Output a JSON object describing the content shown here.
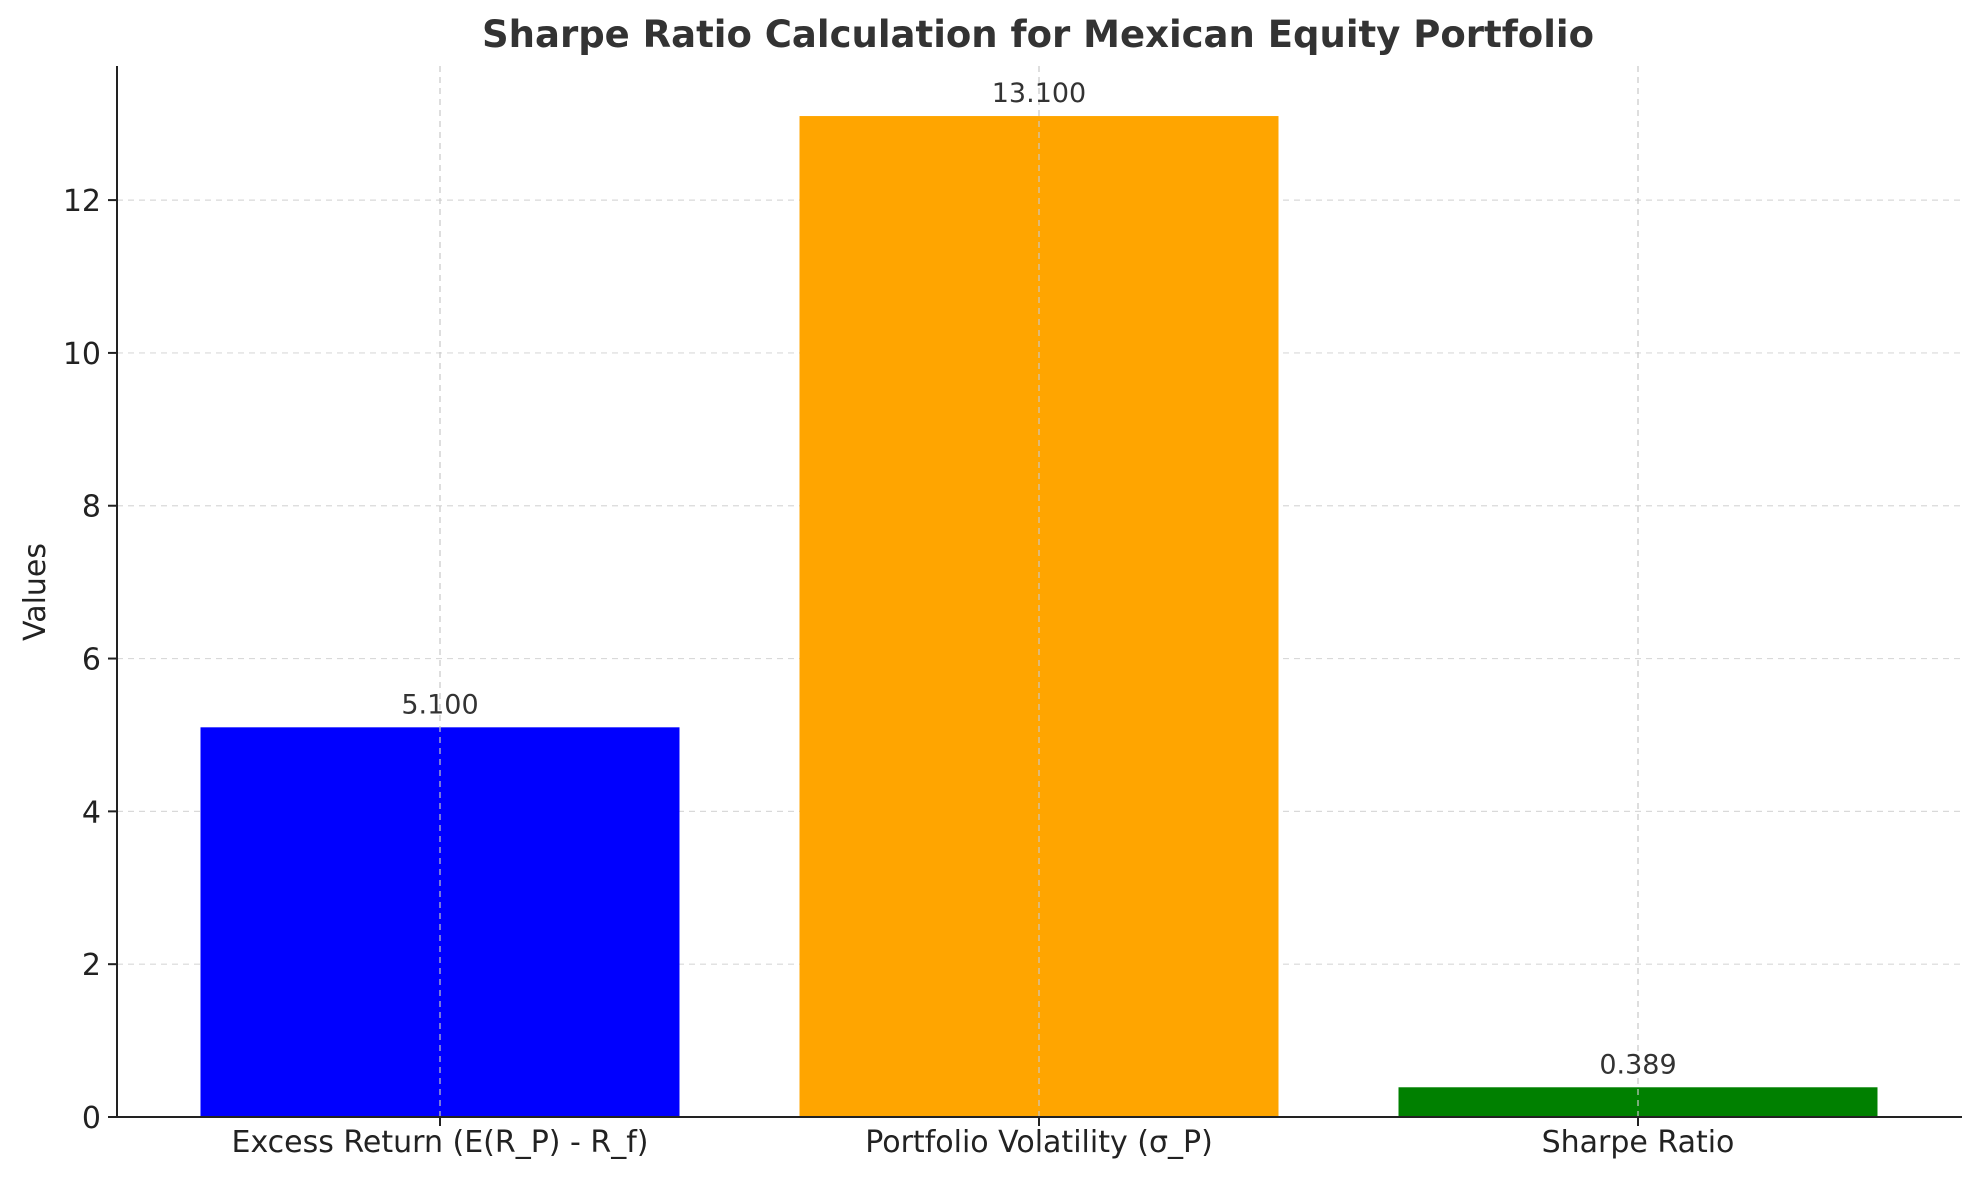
{
  "chart_data": {
    "type": "bar",
    "title": "Sharpe Ratio Calculation for Mexican Equity Portfolio",
    "xlabel": "",
    "ylabel": "Values",
    "categories": [
      "Excess Return (E(R_P) - R_f)",
      "Portfolio Volatility (σ_P)",
      "Sharpe Ratio"
    ],
    "values": [
      5.1,
      13.1,
      0.389
    ],
    "value_labels": [
      "5.100",
      "13.100",
      "0.389"
    ],
    "colors": [
      "#0000ff",
      "#ffa500",
      "#008000"
    ],
    "ylim": [
      0,
      13.755
    ],
    "yticks": [
      0,
      2,
      4,
      6,
      8,
      10,
      12
    ],
    "ytick_labels": [
      "0",
      "2",
      "4",
      "6",
      "8",
      "10",
      "12"
    ],
    "grid": true,
    "legend": "none"
  }
}
